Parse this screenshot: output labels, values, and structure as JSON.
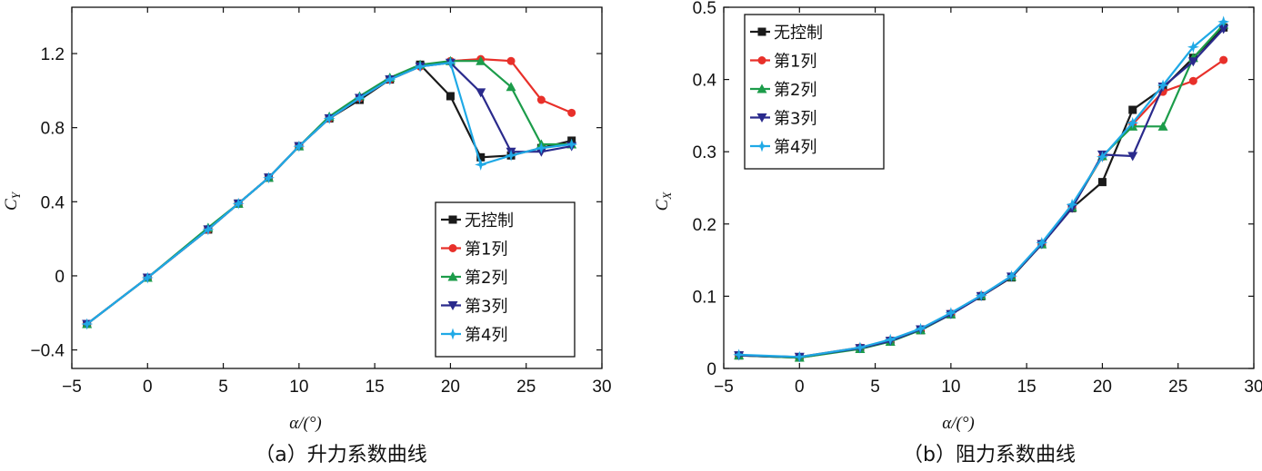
{
  "chart_data": [
    {
      "type": "line",
      "caption": "（a）升力系数曲线",
      "xlabel": "α/(°)",
      "ylabel": "C_Y",
      "xlim": [
        -5,
        30
      ],
      "ylim": [
        -0.5,
        1.45
      ],
      "xticks": [
        -5,
        0,
        5,
        10,
        15,
        20,
        25,
        30
      ],
      "yticks": [
        -0.4,
        0,
        0.4,
        0.8,
        1.2
      ],
      "xtick_labels": [
        "−5",
        "0",
        "5",
        "10",
        "15",
        "20",
        "25",
        "30"
      ],
      "ytick_labels": [
        "−0.4",
        "0",
        "0.4",
        "0.8",
        "1.2"
      ],
      "legend_position": "lower-right",
      "series": [
        {
          "name": "无控制",
          "color": "#1a1a1a",
          "marker": "square",
          "x": [
            -4,
            0,
            4,
            6,
            8,
            10,
            12,
            14,
            16,
            18,
            20,
            22,
            24,
            26,
            28
          ],
          "y": [
            -0.26,
            -0.01,
            0.25,
            0.39,
            0.53,
            0.7,
            0.85,
            0.95,
            1.06,
            1.14,
            0.97,
            0.64,
            0.65,
            0.69,
            0.73
          ]
        },
        {
          "name": "第1列",
          "color": "#e8302a",
          "marker": "circle",
          "x": [
            -4,
            0,
            4,
            6,
            8,
            10,
            12,
            14,
            16,
            18,
            20,
            22,
            24,
            26,
            28
          ],
          "y": [
            -0.26,
            -0.01,
            0.25,
            0.39,
            0.53,
            0.7,
            0.85,
            0.96,
            1.06,
            1.13,
            1.16,
            1.17,
            1.16,
            0.95,
            0.88
          ]
        },
        {
          "name": "第2列",
          "color": "#1c9c4a",
          "marker": "triangle-up",
          "x": [
            -4,
            0,
            4,
            6,
            8,
            10,
            12,
            14,
            16,
            18,
            20,
            22,
            24,
            26,
            28
          ],
          "y": [
            -0.26,
            -0.01,
            0.26,
            0.39,
            0.53,
            0.7,
            0.86,
            0.97,
            1.07,
            1.14,
            1.16,
            1.16,
            1.02,
            0.71,
            0.71
          ]
        },
        {
          "name": "第3列",
          "color": "#2a2a8c",
          "marker": "triangle-down",
          "x": [
            -4,
            0,
            4,
            6,
            8,
            10,
            12,
            14,
            16,
            18,
            20,
            22,
            24,
            26,
            28
          ],
          "y": [
            -0.26,
            -0.01,
            0.25,
            0.39,
            0.53,
            0.7,
            0.85,
            0.96,
            1.06,
            1.13,
            1.15,
            0.99,
            0.67,
            0.67,
            0.7
          ]
        },
        {
          "name": "第4列",
          "color": "#1fa9e6",
          "marker": "star",
          "x": [
            -4,
            0,
            4,
            6,
            8,
            10,
            12,
            14,
            16,
            18,
            20,
            22,
            24,
            26,
            28
          ],
          "y": [
            -0.26,
            -0.01,
            0.25,
            0.39,
            0.53,
            0.7,
            0.85,
            0.96,
            1.06,
            1.13,
            1.15,
            0.6,
            0.65,
            0.69,
            0.71
          ]
        }
      ]
    },
    {
      "type": "line",
      "caption": "（b）阻力系数曲线",
      "xlabel": "α/(°)",
      "ylabel": "C_X",
      "xlim": [
        -5,
        30
      ],
      "ylim": [
        0,
        0.5
      ],
      "xticks": [
        -5,
        0,
        5,
        10,
        15,
        20,
        25,
        30
      ],
      "yticks": [
        0,
        0.1,
        0.2,
        0.3,
        0.4,
        0.5
      ],
      "xtick_labels": [
        "−5",
        "0",
        "5",
        "10",
        "15",
        "20",
        "25",
        "30"
      ],
      "ytick_labels": [
        "0",
        "0.1",
        "0.2",
        "0.3",
        "0.4",
        "0.5"
      ],
      "legend_position": "upper-left",
      "series": [
        {
          "name": "无控制",
          "color": "#1a1a1a",
          "marker": "square",
          "x": [
            -4,
            0,
            4,
            6,
            8,
            10,
            12,
            14,
            16,
            18,
            20,
            22,
            24,
            26,
            28
          ],
          "y": [
            0.018,
            0.015,
            0.028,
            0.038,
            0.053,
            0.075,
            0.1,
            0.126,
            0.172,
            0.222,
            0.258,
            0.358,
            0.388,
            0.43,
            0.472
          ]
        },
        {
          "name": "第1列",
          "color": "#e8302a",
          "marker": "circle",
          "x": [
            -4,
            0,
            4,
            6,
            8,
            10,
            12,
            14,
            16,
            18,
            20,
            22,
            24,
            26,
            28
          ],
          "y": [
            0.018,
            0.016,
            0.029,
            0.039,
            0.054,
            0.076,
            0.101,
            0.127,
            0.173,
            0.224,
            0.293,
            0.338,
            0.383,
            0.398,
            0.427
          ]
        },
        {
          "name": "第2列",
          "color": "#1c9c4a",
          "marker": "triangle-up",
          "x": [
            -4,
            0,
            4,
            6,
            8,
            10,
            12,
            14,
            16,
            18,
            20,
            22,
            24,
            26,
            28
          ],
          "y": [
            0.018,
            0.015,
            0.027,
            0.037,
            0.053,
            0.075,
            0.101,
            0.127,
            0.172,
            0.223,
            0.294,
            0.335,
            0.335,
            0.43,
            0.476
          ]
        },
        {
          "name": "第3列",
          "color": "#2a2a8c",
          "marker": "triangle-down",
          "x": [
            -4,
            0,
            4,
            6,
            8,
            10,
            12,
            14,
            16,
            18,
            20,
            22,
            24,
            26,
            28
          ],
          "y": [
            0.018,
            0.016,
            0.028,
            0.038,
            0.054,
            0.075,
            0.1,
            0.127,
            0.172,
            0.222,
            0.296,
            0.294,
            0.39,
            0.425,
            0.47
          ]
        },
        {
          "name": "第4列",
          "color": "#1fa9e6",
          "marker": "star",
          "x": [
            -4,
            0,
            4,
            6,
            8,
            10,
            12,
            14,
            16,
            18,
            20,
            22,
            24,
            26,
            28
          ],
          "y": [
            0.019,
            0.016,
            0.029,
            0.04,
            0.055,
            0.077,
            0.101,
            0.128,
            0.174,
            0.227,
            0.293,
            0.34,
            0.392,
            0.445,
            0.48
          ]
        }
      ]
    }
  ]
}
